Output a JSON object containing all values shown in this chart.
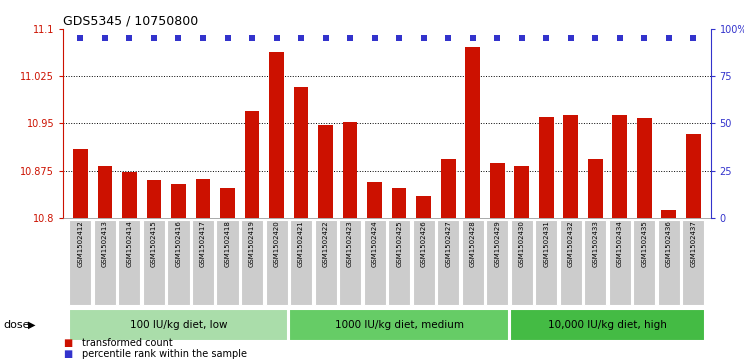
{
  "title": "GDS5345 / 10750800",
  "samples": [
    "GSM1502412",
    "GSM1502413",
    "GSM1502414",
    "GSM1502415",
    "GSM1502416",
    "GSM1502417",
    "GSM1502418",
    "GSM1502419",
    "GSM1502420",
    "GSM1502421",
    "GSM1502422",
    "GSM1502423",
    "GSM1502424",
    "GSM1502425",
    "GSM1502426",
    "GSM1502427",
    "GSM1502428",
    "GSM1502429",
    "GSM1502430",
    "GSM1502431",
    "GSM1502432",
    "GSM1502433",
    "GSM1502434",
    "GSM1502435",
    "GSM1502436",
    "GSM1502437"
  ],
  "values": [
    10.91,
    10.883,
    10.873,
    10.86,
    10.853,
    10.862,
    10.847,
    10.97,
    11.063,
    11.008,
    10.948,
    10.952,
    10.857,
    10.847,
    10.834,
    10.893,
    11.072,
    10.887,
    10.883,
    10.96,
    10.963,
    10.894,
    10.963,
    10.958,
    10.813,
    10.933
  ],
  "bar_color": "#cc1100",
  "dot_color": "#3333cc",
  "ylim": [
    10.8,
    11.1
  ],
  "y_ticks_left": [
    10.8,
    10.875,
    10.95,
    11.025,
    11.1
  ],
  "y_ticks_left_labels": [
    "10.8",
    "10.875",
    "10.95",
    "11.025",
    "11.1"
  ],
  "y_ticks_right": [
    0,
    25,
    50,
    75,
    100
  ],
  "y_ticks_right_labels": [
    "0",
    "25",
    "50",
    "75",
    "100%"
  ],
  "groups": [
    {
      "label": "100 IU/kg diet, low",
      "start": 0,
      "end": 8
    },
    {
      "label": "1000 IU/kg diet, medium",
      "start": 9,
      "end": 17
    },
    {
      "label": "10,000 IU/kg diet, high",
      "start": 18,
      "end": 25
    }
  ],
  "group_color_1": "#aaddaa",
  "group_color_2": "#66cc66",
  "group_color_3": "#44bb44",
  "group_border_color": "#ffffff",
  "legend_bar_label": "transformed count",
  "legend_dot_label": "percentile rank within the sample",
  "xlabel_dose": "dose",
  "xtick_bg": "#cccccc"
}
